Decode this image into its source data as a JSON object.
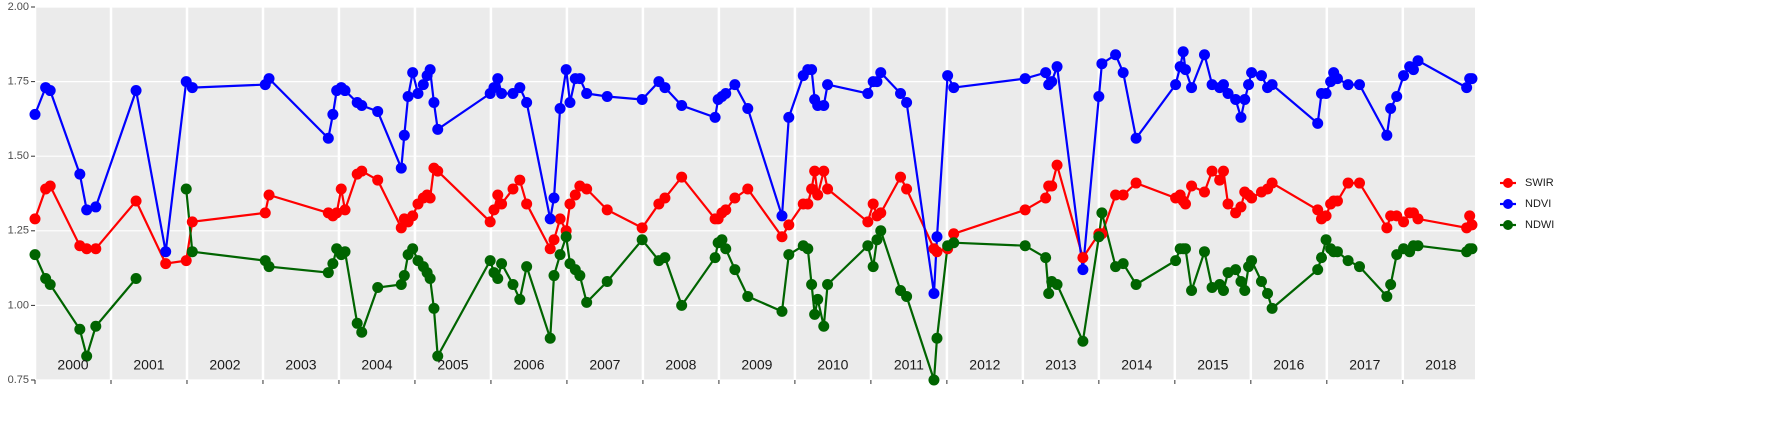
{
  "chart_data": {
    "type": "line",
    "x": [
      2000.0,
      2000.14,
      2000.2,
      2000.59,
      2000.68,
      2000.8,
      2001.33,
      2001.72,
      2001.99,
      2002.07,
      2003.03,
      2003.08,
      2003.86,
      2003.92,
      2003.97,
      2004.03,
      2004.08,
      2004.24,
      2004.3,
      2004.51,
      2004.82,
      2004.86,
      2004.91,
      2004.97,
      2005.04,
      2005.11,
      2005.16,
      2005.2,
      2005.25,
      2005.3,
      2005.99,
      2006.04,
      2006.09,
      2006.14,
      2006.29,
      2006.38,
      2006.47,
      2006.78,
      2006.83,
      2006.91,
      2006.99,
      2007.04,
      2007.11,
      2007.17,
      2007.26,
      2007.53,
      2007.99,
      2008.21,
      2008.29,
      2008.51,
      2008.95,
      2008.99,
      2009.04,
      2009.09,
      2009.21,
      2009.38,
      2009.83,
      2009.92,
      2010.11,
      2010.17,
      2010.22,
      2010.26,
      2010.3,
      2010.38,
      2010.43,
      2010.96,
      2011.03,
      2011.08,
      2011.13,
      2011.39,
      2011.47,
      2011.83,
      2011.87,
      2012.01,
      2012.09,
      2013.03,
      2013.3,
      2013.34,
      2013.38,
      2013.45,
      2013.79,
      2014.0,
      2014.04,
      2014.22,
      2014.32,
      2014.49,
      2015.01,
      2015.07,
      2015.11,
      2015.14,
      2015.22,
      2015.39,
      2015.49,
      2015.59,
      2015.64,
      2015.7,
      2015.8,
      2015.87,
      2015.92,
      2015.97,
      2016.01,
      2016.14,
      2016.22,
      2016.28,
      2016.88,
      2016.93,
      2016.99,
      2017.05,
      2017.09,
      2017.14,
      2017.28,
      2017.43,
      2017.79,
      2017.84,
      2017.92,
      2018.01,
      2018.09,
      2018.14,
      2018.2,
      2018.84,
      2018.88,
      2018.91
    ],
    "series": [
      {
        "name": "SWIR",
        "color": "#ff0000",
        "values": [
          1.29,
          1.39,
          1.4,
          1.2,
          1.19,
          1.19,
          1.35,
          1.14,
          1.15,
          1.28,
          1.31,
          1.37,
          1.31,
          1.3,
          1.31,
          1.39,
          1.32,
          1.44,
          1.45,
          1.42,
          1.26,
          1.29,
          1.28,
          1.3,
          1.34,
          1.36,
          1.37,
          1.36,
          1.46,
          1.45,
          1.28,
          1.32,
          1.37,
          1.34,
          1.39,
          1.42,
          1.34,
          1.19,
          1.22,
          1.29,
          1.25,
          1.34,
          1.37,
          1.4,
          1.39,
          1.32,
          1.26,
          1.34,
          1.36,
          1.43,
          1.29,
          1.29,
          1.31,
          1.32,
          1.36,
          1.39,
          1.23,
          1.27,
          1.34,
          1.34,
          1.39,
          1.45,
          1.37,
          1.45,
          1.39,
          1.28,
          1.34,
          1.3,
          1.31,
          1.43,
          1.39,
          1.19,
          1.18,
          1.19,
          1.24,
          1.32,
          1.36,
          1.4,
          1.4,
          1.47,
          1.16,
          1.24,
          1.24,
          1.37,
          1.37,
          1.41,
          1.36,
          1.37,
          1.35,
          1.34,
          1.4,
          1.38,
          1.45,
          1.42,
          1.45,
          1.34,
          1.31,
          1.33,
          1.38,
          1.37,
          1.36,
          1.38,
          1.39,
          1.41,
          1.32,
          1.29,
          1.3,
          1.34,
          1.35,
          1.35,
          1.41,
          1.41,
          1.26,
          1.3,
          1.3,
          1.28,
          1.31,
          1.31,
          1.29,
          1.26,
          1.3,
          1.27
        ]
      },
      {
        "name": "NDVI",
        "color": "#0000ff",
        "values": [
          1.64,
          1.73,
          1.72,
          1.44,
          1.32,
          1.33,
          1.72,
          1.18,
          1.75,
          1.73,
          1.74,
          1.76,
          1.56,
          1.64,
          1.72,
          1.73,
          1.72,
          1.68,
          1.67,
          1.65,
          1.46,
          1.57,
          1.7,
          1.78,
          1.71,
          1.74,
          1.77,
          1.79,
          1.68,
          1.59,
          1.71,
          1.73,
          1.76,
          1.71,
          1.71,
          1.73,
          1.68,
          1.29,
          1.36,
          1.66,
          1.79,
          1.68,
          1.76,
          1.76,
          1.71,
          1.7,
          1.69,
          1.75,
          1.73,
          1.67,
          1.63,
          1.69,
          1.7,
          1.71,
          1.74,
          1.66,
          1.3,
          1.63,
          1.77,
          1.79,
          1.79,
          1.69,
          1.67,
          1.67,
          1.74,
          1.71,
          1.75,
          1.75,
          1.78,
          1.71,
          1.68,
          1.04,
          1.23,
          1.77,
          1.73,
          1.76,
          1.78,
          1.74,
          1.75,
          1.8,
          1.12,
          1.7,
          1.81,
          1.84,
          1.78,
          1.56,
          1.74,
          1.8,
          1.85,
          1.79,
          1.73,
          1.84,
          1.74,
          1.73,
          1.74,
          1.71,
          1.69,
          1.63,
          1.69,
          1.74,
          1.78,
          1.77,
          1.73,
          1.74,
          1.61,
          1.71,
          1.71,
          1.75,
          1.78,
          1.76,
          1.74,
          1.74,
          1.57,
          1.66,
          1.7,
          1.77,
          1.8,
          1.79,
          1.82,
          1.73,
          1.76,
          1.76
        ]
      },
      {
        "name": "NDWI",
        "color": "#006400",
        "values": [
          1.17,
          1.09,
          1.07,
          0.92,
          0.83,
          0.93,
          1.09,
          null,
          1.39,
          1.18,
          1.15,
          1.13,
          1.11,
          1.14,
          1.19,
          1.17,
          1.18,
          0.94,
          0.91,
          1.06,
          1.07,
          1.1,
          1.17,
          1.19,
          1.15,
          1.13,
          1.11,
          1.09,
          0.99,
          0.83,
          1.15,
          1.11,
          1.09,
          1.14,
          1.07,
          1.02,
          1.13,
          0.89,
          1.1,
          1.17,
          1.23,
          1.14,
          1.12,
          1.1,
          1.01,
          1.08,
          1.22,
          1.15,
          1.16,
          1.0,
          1.16,
          1.21,
          1.22,
          1.19,
          1.12,
          1.03,
          0.98,
          1.17,
          1.2,
          1.19,
          1.07,
          0.97,
          1.02,
          0.93,
          1.07,
          1.2,
          1.13,
          1.22,
          1.25,
          1.05,
          1.03,
          0.75,
          0.89,
          1.2,
          1.21,
          1.2,
          1.16,
          1.04,
          1.08,
          1.07,
          0.88,
          1.23,
          1.31,
          1.13,
          1.14,
          1.07,
          1.15,
          1.19,
          1.19,
          1.19,
          1.05,
          1.18,
          1.06,
          1.07,
          1.05,
          1.11,
          1.12,
          1.08,
          1.05,
          1.13,
          1.15,
          1.08,
          1.04,
          0.99,
          1.12,
          1.16,
          1.22,
          1.19,
          1.18,
          1.18,
          1.15,
          1.13,
          1.03,
          1.07,
          1.17,
          1.19,
          1.18,
          1.2,
          1.2,
          1.18,
          1.19,
          1.19
        ]
      }
    ],
    "xlim": [
      2000,
      2018.95
    ],
    "xticks": [
      2000,
      2001,
      2002,
      2003,
      2004,
      2005,
      2006,
      2007,
      2008,
      2009,
      2010,
      2011,
      2012,
      2013,
      2014,
      2015,
      2016,
      2017,
      2018
    ],
    "ylim": [
      0.75,
      2.0
    ],
    "yticks": [
      0.75,
      {
        "value": 1.0,
        "label": "1.00"
      },
      1.25,
      {
        "value": 1.5,
        "label": "1.50"
      },
      1.75,
      {
        "value": 2.0,
        "label": "2.00"
      }
    ],
    "grid": true,
    "legend": "right"
  }
}
